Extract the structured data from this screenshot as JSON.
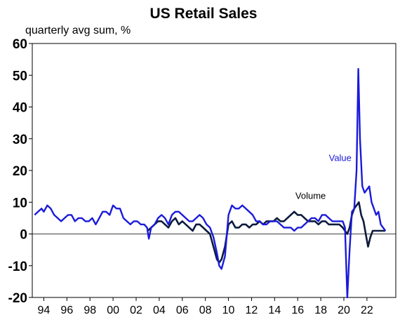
{
  "chart_data": {
    "type": "line",
    "title": "US Retail Sales",
    "subtitle": "quarterly avg sum, %",
    "ylim": [
      -20,
      60
    ],
    "yticks": [
      -20,
      -10,
      0,
      10,
      20,
      30,
      40,
      50,
      60
    ],
    "xlim": [
      1993.0,
      2024.5
    ],
    "xticks": [
      {
        "x": 1994,
        "label": "94"
      },
      {
        "x": 1996,
        "label": "96"
      },
      {
        "x": 1998,
        "label": "98"
      },
      {
        "x": 2000,
        "label": "00"
      },
      {
        "x": 2002,
        "label": "02"
      },
      {
        "x": 2004,
        "label": "04"
      },
      {
        "x": 2006,
        "label": "06"
      },
      {
        "x": 2008,
        "label": "08"
      },
      {
        "x": 2010,
        "label": "10"
      },
      {
        "x": 2012,
        "label": "12"
      },
      {
        "x": 2014,
        "label": "14"
      },
      {
        "x": 2016,
        "label": "16"
      },
      {
        "x": 2018,
        "label": "18"
      },
      {
        "x": 2020,
        "label": "20"
      },
      {
        "x": 2022,
        "label": "22"
      }
    ],
    "zero_line": true,
    "grid": false,
    "series": [
      {
        "name": "Value",
        "color": "#1a1adb",
        "x": [
          1993.2,
          1993.5,
          1993.8,
          1994.0,
          1994.3,
          1994.6,
          1994.9,
          1995.2,
          1995.5,
          1995.8,
          1996.1,
          1996.4,
          1996.7,
          1997.0,
          1997.3,
          1997.6,
          1997.9,
          1998.2,
          1998.5,
          1998.8,
          1999.1,
          1999.4,
          1999.7,
          2000.0,
          2000.3,
          2000.6,
          2000.9,
          2001.2,
          2001.5,
          2001.8,
          2002.1,
          2002.4,
          2002.7,
          2002.95,
          2003.1,
          2003.3,
          2003.6,
          2003.9,
          2004.2,
          2004.5,
          2004.8,
          2005.1,
          2005.4,
          2005.7,
          2006.0,
          2006.3,
          2006.6,
          2006.9,
          2007.2,
          2007.5,
          2007.8,
          2008.1,
          2008.4,
          2008.7,
          2009.0,
          2009.2,
          2009.4,
          2009.7,
          2010.0,
          2010.3,
          2010.6,
          2010.9,
          2011.2,
          2011.5,
          2011.8,
          2012.1,
          2012.4,
          2012.7,
          2013.0,
          2013.3,
          2013.6,
          2013.9,
          2014.2,
          2014.5,
          2014.8,
          2015.1,
          2015.4,
          2015.7,
          2016.0,
          2016.3,
          2016.6,
          2016.9,
          2017.2,
          2017.5,
          2017.8,
          2018.1,
          2018.4,
          2018.7,
          2019.0,
          2019.3,
          2019.6,
          2019.9,
          2020.1,
          2020.3,
          2020.5,
          2020.7,
          2020.9,
          2021.1,
          2021.25,
          2021.4,
          2021.6,
          2021.8,
          2022.0,
          2022.2,
          2022.4,
          2022.6,
          2022.8,
          2023.0,
          2023.2,
          2023.4,
          2023.6
        ],
        "y": [
          6,
          7,
          8,
          7,
          9,
          8,
          6,
          5,
          4,
          5,
          6,
          6,
          4,
          5,
          5,
          4,
          4,
          5,
          3,
          5,
          7,
          7,
          6,
          9,
          8,
          8,
          5,
          4,
          3,
          4,
          4,
          3,
          3,
          2,
          -1.5,
          2,
          3,
          5,
          6,
          5,
          3,
          6,
          7,
          7,
          6,
          5,
          4,
          4,
          5,
          6,
          5,
          3,
          2,
          -1,
          -6,
          -10,
          -11,
          -7,
          6,
          9,
          8,
          8,
          9,
          8,
          7,
          6,
          4,
          4,
          3,
          3,
          4,
          4,
          4,
          3,
          2,
          2,
          2,
          1,
          2,
          2,
          3,
          4,
          5,
          5,
          4,
          6,
          6,
          5,
          4,
          4,
          4,
          4,
          2,
          -20,
          -5,
          7,
          8,
          20,
          52,
          30,
          15,
          13,
          14,
          15,
          10,
          8,
          6,
          7,
          3,
          2,
          1
        ]
      },
      {
        "name": "Volume",
        "color": "#0d1b3d",
        "x": [
          2003.0,
          2003.3,
          2003.6,
          2003.9,
          2004.2,
          2004.5,
          2004.8,
          2005.1,
          2005.4,
          2005.7,
          2006.0,
          2006.3,
          2006.6,
          2006.9,
          2007.2,
          2007.5,
          2007.8,
          2008.1,
          2008.4,
          2008.7,
          2009.0,
          2009.2,
          2009.4,
          2009.7,
          2010.0,
          2010.3,
          2010.6,
          2010.9,
          2011.2,
          2011.5,
          2011.8,
          2012.1,
          2012.4,
          2012.7,
          2013.0,
          2013.3,
          2013.6,
          2013.9,
          2014.2,
          2014.5,
          2014.8,
          2015.1,
          2015.4,
          2015.7,
          2016.0,
          2016.3,
          2016.6,
          2016.9,
          2017.2,
          2017.5,
          2017.8,
          2018.1,
          2018.4,
          2018.7,
          2019.0,
          2019.3,
          2019.6,
          2019.9,
          2020.1,
          2020.3,
          2020.5,
          2020.7,
          2020.9,
          2021.1,
          2021.3,
          2021.5,
          2021.7,
          2021.9,
          2022.1,
          2022.3,
          2022.5,
          2022.7,
          2022.9,
          2023.1,
          2023.3,
          2023.6
        ],
        "y": [
          1,
          2,
          3,
          4,
          4,
          3,
          2,
          4,
          5,
          3,
          4,
          3,
          2,
          1,
          3,
          3,
          2,
          1,
          0,
          -4,
          -8,
          -9,
          -8,
          -4,
          3,
          4,
          2,
          2,
          3,
          3,
          2,
          3,
          3,
          4,
          3,
          4,
          4,
          4,
          5,
          4,
          4,
          5,
          6,
          7,
          6,
          6,
          5,
          4,
          4,
          4,
          3,
          4,
          4,
          3,
          3,
          3,
          3,
          2,
          1,
          0,
          2,
          6,
          8,
          9,
          10,
          6,
          4,
          0,
          -4,
          -1,
          1,
          1,
          1,
          1,
          1,
          1
        ]
      }
    ],
    "annotations": [
      {
        "text": "Value",
        "x": 2018.7,
        "y": 23,
        "series": "Value"
      },
      {
        "text": "Volume",
        "x": 2015.8,
        "y": 11,
        "series": "Volume"
      }
    ]
  }
}
